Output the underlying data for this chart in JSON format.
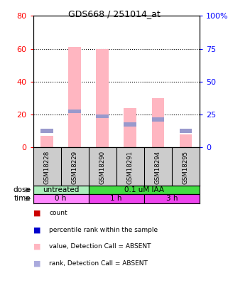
{
  "title": "GDS668 / 251014_at",
  "samples": [
    "GSM18228",
    "GSM18229",
    "GSM18290",
    "GSM18291",
    "GSM18294",
    "GSM18295"
  ],
  "pink_values": [
    7,
    61,
    60,
    24,
    30,
    8
  ],
  "blue_ranks": [
    10,
    22,
    19,
    14,
    17,
    10
  ],
  "ylim_left": [
    0,
    80
  ],
  "ylim_right": [
    0,
    100
  ],
  "yticks_left": [
    0,
    20,
    40,
    60,
    80
  ],
  "yticks_right": [
    0,
    25,
    50,
    75,
    100
  ],
  "dose_labels": [
    {
      "text": "untreated",
      "start": 0,
      "end": 2,
      "color": "#AAEEBB"
    },
    {
      "text": "0.1 uM IAA",
      "start": 2,
      "end": 6,
      "color": "#44DD44"
    }
  ],
  "time_labels": [
    {
      "text": "0 h",
      "start": 0,
      "end": 2,
      "color": "#FF88FF"
    },
    {
      "text": "1 h",
      "start": 2,
      "end": 4,
      "color": "#EE44EE"
    },
    {
      "text": "3 h",
      "start": 4,
      "end": 6,
      "color": "#EE44EE"
    }
  ],
  "bar_width": 0.45,
  "pink_color": "#FFB6C1",
  "blue_color": "#9999CC",
  "sample_bg_color": "#CCCCCC",
  "bg_color": "#FFFFFF",
  "legend_colors": [
    "#CC0000",
    "#0000CC",
    "#FFB6C1",
    "#AAAADD"
  ],
  "legend_labels": [
    "count",
    "percentile rank within the sample",
    "value, Detection Call = ABSENT",
    "rank, Detection Call = ABSENT"
  ]
}
